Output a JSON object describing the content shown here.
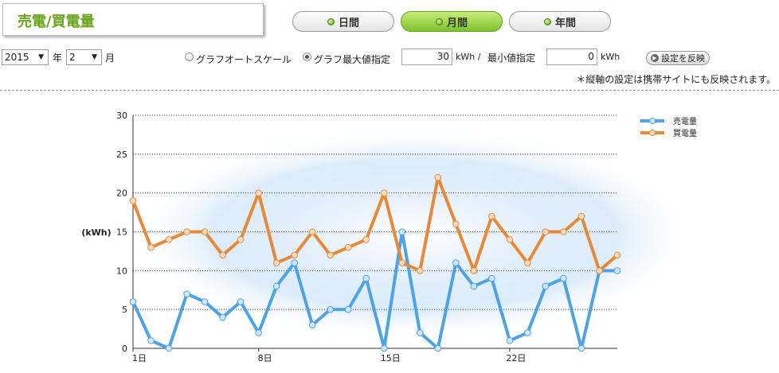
{
  "header": {
    "title": "売電/買電量"
  },
  "tabs": [
    {
      "label": "日間",
      "active": false
    },
    {
      "label": "月間",
      "active": true
    },
    {
      "label": "年間",
      "active": false
    }
  ],
  "controls": {
    "year_value": "2015",
    "year_unit": "年",
    "month_value": "2",
    "month_unit": "月",
    "auto_scale_label": "グラフオートスケール",
    "max_label": "グラフ最大値指定",
    "max_value": "30",
    "max_unit": "kWh /",
    "min_label": "最小値指定",
    "min_value": "0",
    "min_unit": "kWh",
    "apply_label": "設定を反映",
    "note": "＊縦軸の設定は携帯サイトにも反映されます。"
  },
  "colors": {
    "sell": "#4ea3e8",
    "buy": "#e8893a",
    "tab_active": "#7cc42a",
    "title": "#6aa51e"
  },
  "chart_data": {
    "type": "line",
    "ylabel": "(kWh)",
    "ylim": [
      0,
      30
    ],
    "yticks": [
      0,
      5,
      10,
      15,
      20,
      25,
      30
    ],
    "xlim": [
      1,
      28
    ],
    "xticks": [
      {
        "x": 1,
        "label": "1日"
      },
      {
        "x": 8,
        "label": "8日"
      },
      {
        "x": 15,
        "label": "15日"
      },
      {
        "x": 22,
        "label": "22日"
      }
    ],
    "x": [
      1,
      2,
      3,
      4,
      5,
      6,
      7,
      8,
      9,
      10,
      11,
      12,
      13,
      14,
      15,
      16,
      17,
      18,
      19,
      20,
      21,
      22,
      23,
      24,
      25,
      26,
      27,
      28
    ],
    "grid": true,
    "legend_position": "top-right",
    "series": [
      {
        "name": "売電量",
        "color": "#4ea3e8",
        "values": [
          6,
          1,
          0,
          7,
          6,
          4,
          6,
          2,
          8,
          11,
          3,
          5,
          5,
          9,
          0,
          15,
          2,
          0,
          11,
          8,
          9,
          1,
          2,
          8,
          9,
          0,
          10,
          10
        ]
      },
      {
        "name": "買電量",
        "color": "#e8893a",
        "values": [
          19,
          13,
          14,
          15,
          15,
          12,
          14,
          20,
          11,
          12,
          15,
          12,
          13,
          14,
          20,
          11,
          10,
          22,
          16,
          10,
          17,
          14,
          11,
          15,
          15,
          17,
          10,
          12
        ]
      }
    ]
  }
}
